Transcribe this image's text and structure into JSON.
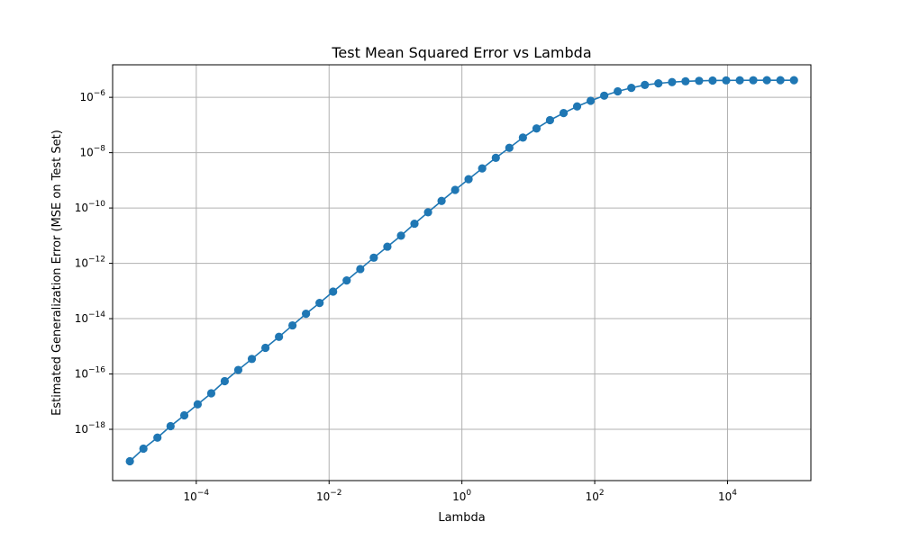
{
  "chart_data": {
    "type": "line",
    "title": "Test Mean Squared Error vs Lambda",
    "xlabel": "Lambda",
    "ylabel": "Estimated Generalization Error (MSE on Test Set)",
    "xscale": "log",
    "yscale": "log",
    "xlim": [
      5.5e-06,
      180000.0
    ],
    "ylim": [
      1.4e-20,
      1.5e-05
    ],
    "grid": true,
    "legend": "none",
    "marker": "circle",
    "color": "#1f77b4",
    "x_ticks": [
      {
        "value": 0.0001,
        "base": "10",
        "exp": "−4"
      },
      {
        "value": 0.01,
        "base": "10",
        "exp": "−2"
      },
      {
        "value": 1,
        "base": "10",
        "exp": "0"
      },
      {
        "value": 100,
        "base": "10",
        "exp": "2"
      },
      {
        "value": 10000,
        "base": "10",
        "exp": "4"
      }
    ],
    "y_ticks": [
      {
        "value": 1e-18,
        "base": "10",
        "exp": "−18"
      },
      {
        "value": 1e-16,
        "base": "10",
        "exp": "−16"
      },
      {
        "value": 1e-14,
        "base": "10",
        "exp": "−14"
      },
      {
        "value": 1e-12,
        "base": "10",
        "exp": "−12"
      },
      {
        "value": 1e-10,
        "base": "10",
        "exp": "−10"
      },
      {
        "value": 1e-08,
        "base": "10",
        "exp": "−8"
      },
      {
        "value": 1e-06,
        "base": "10",
        "exp": "−6"
      }
    ],
    "series": [
      {
        "x": [
          1e-05,
          1.6e-05,
          2.6e-05,
          4.1e-05,
          6.6e-05,
          0.000105,
          0.000168,
          0.000268,
          0.000429,
          0.000687,
          0.0011,
          0.00176,
          0.00281,
          0.00449,
          0.00719,
          0.0115,
          0.0184,
          0.0295,
          0.0471,
          0.0754,
          0.121,
          0.193,
          0.309,
          0.494,
          0.791,
          1.26,
          2.02,
          3.24,
          5.18,
          8.29,
          13.3,
          21.2,
          34.0,
          54.3,
          86.9,
          139,
          222,
          356,
          569,
          910,
          1460,
          2330,
          3730,
          5960,
          9540,
          15300,
          24400,
          39100,
          62500,
          100000
        ],
        "y": [
          7e-20,
          2e-19,
          5e-19,
          1.3e-18,
          3.2e-18,
          8e-18,
          2e-17,
          5.5e-17,
          1.4e-16,
          3.5e-16,
          8.8e-16,
          2.2e-15,
          5.7e-15,
          1.5e-14,
          3.7e-14,
          9.5e-14,
          2.4e-13,
          6.2e-13,
          1.6e-12,
          4e-12,
          1e-11,
          2.7e-11,
          7e-11,
          1.8e-10,
          4.5e-10,
          1.1e-09,
          2.7e-09,
          6.5e-09,
          1.5e-08,
          3.5e-08,
          7.5e-08,
          1.5e-07,
          2.7e-07,
          4.7e-07,
          7.5e-07,
          1.15e-06,
          1.65e-06,
          2.2e-06,
          2.8e-06,
          3.2e-06,
          3.55e-06,
          3.8e-06,
          3.95e-06,
          4.05e-06,
          4.1e-06,
          4.12e-06,
          4.14e-06,
          4.15e-06,
          4.15e-06,
          4.15e-06
        ]
      }
    ]
  }
}
